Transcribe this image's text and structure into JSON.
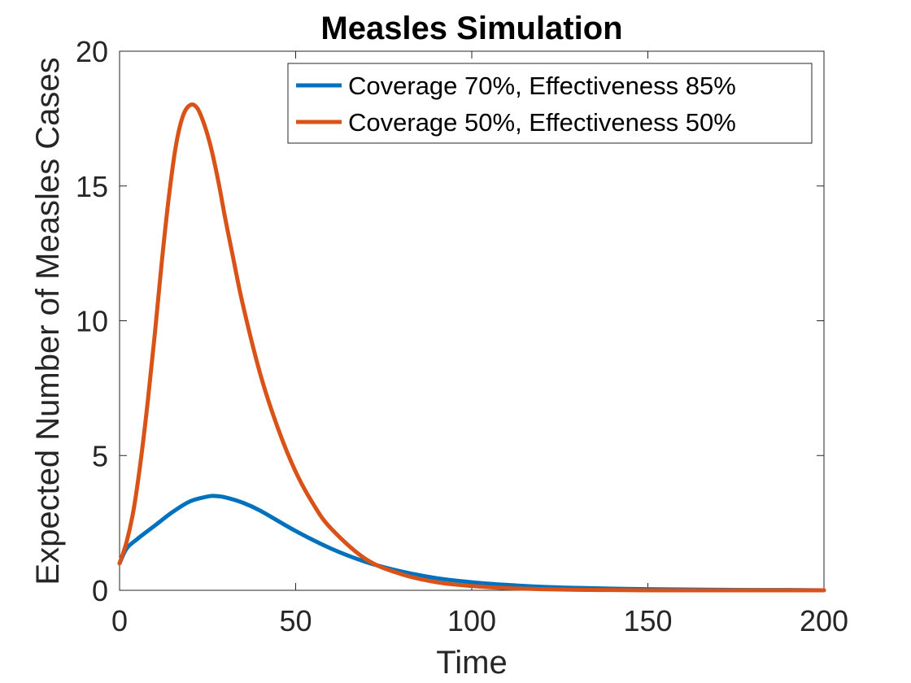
{
  "chart_data": {
    "type": "line",
    "title": "Measles Simulation",
    "xlabel": "Time",
    "ylabel": "Expected Number of Measles Cases",
    "xlim": [
      0,
      200
    ],
    "ylim": [
      0,
      20
    ],
    "xticks": [
      0,
      50,
      100,
      150,
      200
    ],
    "yticks": [
      0,
      5,
      10,
      15,
      20
    ],
    "legend_position": "top-right",
    "grid": false,
    "box": true,
    "series": [
      {
        "name": "Coverage 70%, Effectiveness 85%",
        "color": "#0072BD",
        "x": [
          0,
          2,
          5,
          10,
          15,
          20,
          25,
          27,
          30,
          35,
          40,
          50,
          60,
          70,
          80,
          90,
          100,
          110,
          120,
          130,
          140,
          150,
          160,
          170,
          180,
          190,
          200
        ],
        "y": [
          1.0,
          1.55,
          1.9,
          2.4,
          2.9,
          3.3,
          3.48,
          3.5,
          3.45,
          3.25,
          2.95,
          2.2,
          1.55,
          1.05,
          0.7,
          0.45,
          0.3,
          0.2,
          0.13,
          0.09,
          0.06,
          0.04,
          0.03,
          0.02,
          0.01,
          0.01,
          0.0
        ]
      },
      {
        "name": "Coverage 50%, Effectiveness 50%",
        "color": "#D95319",
        "x": [
          0,
          2,
          4,
          6,
          8,
          10,
          12,
          14,
          16,
          18,
          20,
          22,
          24,
          26,
          28,
          30,
          32,
          35,
          40,
          45,
          50,
          55,
          60,
          70,
          80,
          90,
          100,
          110,
          120,
          130,
          140,
          150,
          160,
          170,
          180,
          190,
          200
        ],
        "y": [
          1.0,
          1.8,
          3.0,
          4.8,
          7.0,
          9.5,
          12.2,
          14.6,
          16.5,
          17.6,
          18.0,
          17.9,
          17.3,
          16.4,
          15.2,
          13.8,
          12.5,
          10.6,
          8.0,
          6.0,
          4.4,
          3.2,
          2.3,
          1.15,
          0.6,
          0.3,
          0.16,
          0.08,
          0.04,
          0.02,
          0.01,
          0.0,
          0.0,
          0.0,
          0.0,
          0.0,
          0.0
        ]
      }
    ]
  }
}
